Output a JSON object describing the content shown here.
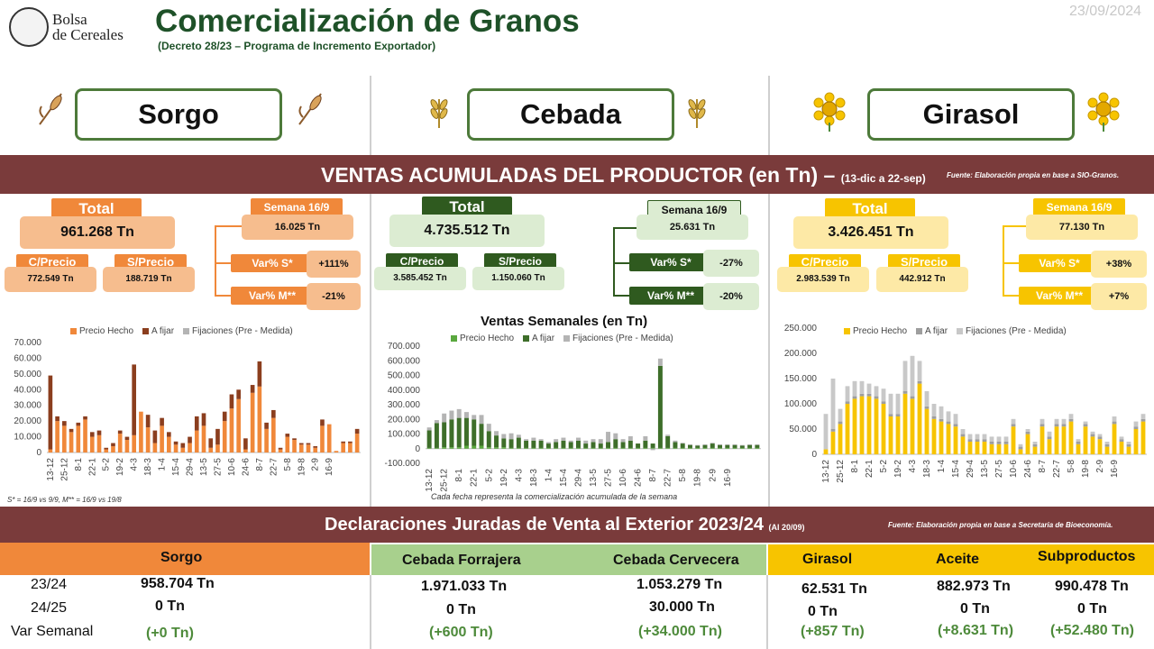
{
  "header": {
    "logo_line1": "Bolsa",
    "logo_line2": "de Cereales",
    "title": "Comercialización de Granos",
    "subtitle": "(Decreto 28/23 – Programa de Incremento Exportador)",
    "date": "23/09/2024"
  },
  "crops": [
    "Sorgo",
    "Cebada",
    "Girasol"
  ],
  "band1": {
    "title": "VENTAS ACUMULADAS DEL PRODUCTOR (en Tn) –",
    "range": "(13-dic a 22-sep)",
    "source": "Fuente: Elaboración propia en base a SIO-Granos."
  },
  "stats": [
    {
      "total_label": "Total",
      "total": "961.268 Tn",
      "cprecio_label": "C/Precio",
      "cprecio": "772.549 Tn",
      "sprecio_label": "S/Precio",
      "sprecio": "188.719 Tn",
      "semana_label": "Semana 16/9",
      "semana": "16.025 Tn",
      "vars_label": "Var% S*",
      "vars": "+111%",
      "varm_label": "Var% M**",
      "varm": "-21%"
    },
    {
      "total_label": "Total",
      "total": "4.735.512 Tn",
      "cprecio_label": "C/Precio",
      "cprecio": "3.585.452 Tn",
      "sprecio_label": "S/Precio",
      "sprecio": "1.150.060 Tn",
      "semana_label": "Semana 16/9",
      "semana": "25.631 Tn",
      "vars_label": "Var% S*",
      "vars": "-27%",
      "varm_label": "Var% M**",
      "varm": "-20%"
    },
    {
      "total_label": "Total",
      "total": "3.426.451 Tn",
      "cprecio_label": "C/Precio",
      "cprecio": "2.983.539 Tn",
      "sprecio_label": "S/Precio",
      "sprecio": "442.912 Tn",
      "semana_label": "Semana 16/9",
      "semana": "77.130 Tn",
      "vars_label": "Var% S*",
      "vars": "+38%",
      "varm_label": "Var% M**",
      "varm": "+7%"
    }
  ],
  "colors": {
    "sorgo": "#f0883a",
    "sorgo_dark": "#8b3e1e",
    "cebada": "#5aa83e",
    "cebada_dark": "#3e6e2a",
    "girasol": "#f7c400",
    "fijaciones": "#b4b4b4",
    "band": "#7a3b3b"
  },
  "chart_title": "Ventas Semanales (en Tn)",
  "legend": {
    "precio": "Precio Hecho",
    "afijar": "A fijar",
    "fijaciones": "Fijaciones (Pre - Medida)"
  },
  "note_left": "S* = 16/9 vs 9/9, M** = 16/9 vs 19/8",
  "note_center": "Cada fecha representa la comercialización acumulada de la semana",
  "chart_data": [
    {
      "type": "bar",
      "stacked": true,
      "x_tick_labels": [
        "13-12",
        "25-12",
        "8-1",
        "22-1",
        "5-2",
        "19-2",
        "4-3",
        "18-3",
        "1-4",
        "15-4",
        "29-4",
        "13-5",
        "27-5",
        "10-6",
        "24-6",
        "8-7",
        "22-7",
        "5-8",
        "19-8",
        "2-9",
        "16-9"
      ],
      "ylim": [
        0,
        70000
      ],
      "y_ticks": [
        "0",
        "10.000",
        "20.000",
        "30.000",
        "40.000",
        "50.000",
        "60.000",
        "70.000"
      ],
      "series": [
        {
          "name": "Precio Hecho",
          "values": [
            2000,
            20000,
            17000,
            13000,
            17000,
            21000,
            10000,
            11000,
            2000,
            4000,
            12000,
            8000,
            11000,
            26000,
            16000,
            6000,
            17000,
            10000,
            5000,
            3000,
            6000,
            14000,
            17000,
            3000,
            5000,
            20000,
            28000,
            34000,
            2000,
            38000,
            42000,
            15000,
            22000,
            2000,
            10000,
            8000,
            5000,
            5000,
            3000,
            17000,
            18000,
            1000,
            6000,
            6000,
            12000
          ]
        },
        {
          "name": "A fijar",
          "values": [
            47000,
            3000,
            3000,
            2000,
            2000,
            2000,
            3000,
            3000,
            1000,
            2000,
            2000,
            2000,
            45000,
            0,
            8000,
            8000,
            5000,
            3000,
            2000,
            3000,
            4000,
            9000,
            8000,
            6000,
            10000,
            6000,
            9000,
            6000,
            7000,
            5000,
            16000,
            4000,
            5000,
            1000,
            2000,
            1000,
            1000,
            1000,
            1000,
            4000,
            0,
            0,
            1000,
            1000,
            3000
          ]
        },
        {
          "name": "Fijaciones (Pre - Medida)",
          "values": [
            0,
            0,
            0,
            0,
            0,
            0,
            0,
            0,
            0,
            0,
            0,
            0,
            0,
            0,
            0,
            0,
            0,
            0,
            0,
            0,
            0,
            0,
            0,
            0,
            0,
            0,
            0,
            0,
            0,
            0,
            0,
            0,
            0,
            0,
            0,
            0,
            0,
            0,
            0,
            0,
            0,
            0,
            0,
            0,
            0
          ]
        }
      ]
    },
    {
      "type": "bar",
      "stacked": true,
      "title": "Ventas Semanales (en Tn)",
      "x_tick_labels": [
        "13-12",
        "25-12",
        "8-1",
        "22-1",
        "5-2",
        "19-2",
        "4-3",
        "18-3",
        "1-4",
        "15-4",
        "29-4",
        "13-5",
        "27-5",
        "10-6",
        "24-6",
        "8-7",
        "22-7",
        "5-8",
        "19-8",
        "2-9",
        "16-9"
      ],
      "ylim": [
        -100000,
        700000
      ],
      "y_ticks": [
        "-100.000",
        "0",
        "100.000",
        "200.000",
        "300.000",
        "400.000",
        "500.000",
        "600.000",
        "700.000"
      ],
      "series": [
        {
          "name": "Precio Hecho",
          "values": [
            5000,
            5000,
            10000,
            10000,
            10000,
            20000,
            20000,
            20000,
            10000,
            10000,
            10000,
            5000,
            5000,
            5000,
            5000,
            5000,
            5000,
            5000,
            5000,
            5000,
            5000,
            5000,
            5000,
            5000,
            5000,
            5000,
            5000,
            5000,
            5000,
            5000,
            5000,
            5000,
            5000,
            5000,
            5000,
            5000,
            5000,
            5000,
            5000,
            5000,
            5000,
            5000,
            5000,
            5000,
            5000
          ]
        },
        {
          "name": "A fijar",
          "values": [
            120000,
            170000,
            170000,
            190000,
            200000,
            190000,
            180000,
            150000,
            110000,
            80000,
            60000,
            60000,
            70000,
            50000,
            50000,
            50000,
            30000,
            40000,
            50000,
            40000,
            50000,
            30000,
            40000,
            30000,
            40000,
            60000,
            40000,
            50000,
            30000,
            50000,
            30000,
            560000,
            80000,
            40000,
            30000,
            20000,
            15000,
            20000,
            30000,
            20000,
            20000,
            20000,
            15000,
            20000,
            20000
          ]
        },
        {
          "name": "Fijaciones (Pre - Medida)",
          "values": [
            20000,
            20000,
            60000,
            60000,
            60000,
            40000,
            30000,
            60000,
            50000,
            30000,
            30000,
            40000,
            20000,
            10000,
            20000,
            10000,
            10000,
            20000,
            20000,
            10000,
            20000,
            20000,
            20000,
            30000,
            70000,
            40000,
            20000,
            30000,
            0,
            30000,
            -10000,
            50000,
            10000,
            10000,
            5000,
            5000,
            5000,
            5000,
            5000,
            5000,
            5000,
            5000,
            5000,
            5000,
            5000
          ]
        }
      ]
    },
    {
      "type": "bar",
      "stacked": true,
      "x_tick_labels": [
        "13-12",
        "25-12",
        "8-1",
        "22-1",
        "5-2",
        "19-2",
        "4-3",
        "18-3",
        "1-4",
        "15-4",
        "29-4",
        "13-5",
        "27-5",
        "10-6",
        "24-6",
        "8-7",
        "22-7",
        "5-8",
        "19-8",
        "2-9",
        "16-9"
      ],
      "ylim": [
        0,
        250000
      ],
      "y_ticks": [
        "0",
        "50.000",
        "100.000",
        "150.000",
        "200.000",
        "250.000"
      ],
      "series": [
        {
          "name": "Precio Hecho",
          "values": [
            10000,
            45000,
            60000,
            100000,
            110000,
            115000,
            115000,
            110000,
            100000,
            75000,
            75000,
            120000,
            110000,
            140000,
            90000,
            70000,
            65000,
            60000,
            55000,
            35000,
            25000,
            25000,
            25000,
            20000,
            20000,
            20000,
            55000,
            10000,
            40000,
            15000,
            55000,
            30000,
            55000,
            55000,
            65000,
            20000,
            55000,
            35000,
            30000,
            15000,
            60000,
            25000,
            15000,
            50000,
            65000
          ]
        },
        {
          "name": "A fijar",
          "values": [
            0,
            5000,
            5000,
            5000,
            5000,
            5000,
            5000,
            5000,
            5000,
            5000,
            5000,
            5000,
            5000,
            5000,
            5000,
            5000,
            5000,
            5000,
            5000,
            5000,
            5000,
            5000,
            5000,
            5000,
            5000,
            5000,
            5000,
            5000,
            5000,
            5000,
            5000,
            5000,
            5000,
            5000,
            5000,
            5000,
            5000,
            5000,
            5000,
            5000,
            5000,
            5000,
            5000,
            5000,
            5000
          ]
        },
        {
          "name": "Fijaciones (Pre - Medida)",
          "values": [
            70000,
            100000,
            25000,
            30000,
            30000,
            25000,
            20000,
            20000,
            25000,
            40000,
            40000,
            60000,
            80000,
            40000,
            30000,
            25000,
            25000,
            20000,
            20000,
            10000,
            10000,
            10000,
            10000,
            10000,
            10000,
            10000,
            10000,
            5000,
            5000,
            5000,
            10000,
            10000,
            10000,
            10000,
            10000,
            5000,
            5000,
            5000,
            5000,
            5000,
            10000,
            5000,
            5000,
            10000,
            10000
          ]
        }
      ]
    }
  ],
  "band2": {
    "title": "Declaraciones Juradas de Venta al Exterior 2023/24",
    "date": "(Al 20/09)",
    "source": "Fuente: Elaboración propia en base a Secretaria de Bioeconomía."
  },
  "djve": {
    "h_sorgo": "Sorgo",
    "h_forrajera": "Cebada Forrajera",
    "h_cervecera": "Cebada Cervecera",
    "h_girasol": "Girasol",
    "h_aceite": "Aceite",
    "h_subproductos": "Subproductos",
    "row1": "23/24",
    "row2": "24/25",
    "row3": "Var Semanal",
    "sorgo": [
      "958.704 Tn",
      "0 Tn",
      "(+0 Tn)"
    ],
    "forrajera": [
      "1.971.033 Tn",
      "0 Tn",
      "(+600 Tn)"
    ],
    "cervecera": [
      "1.053.279 Tn",
      "30.000 Tn",
      "(+34.000 Tn)"
    ],
    "girasol": [
      "62.531 Tn",
      "0 Tn",
      "(+857 Tn)"
    ],
    "aceite": [
      "882.973 Tn",
      "0 Tn",
      "(+8.631 Tn)"
    ],
    "subproductos": [
      "990.478 Tn",
      "0 Tn",
      "(+52.480 Tn)"
    ]
  }
}
